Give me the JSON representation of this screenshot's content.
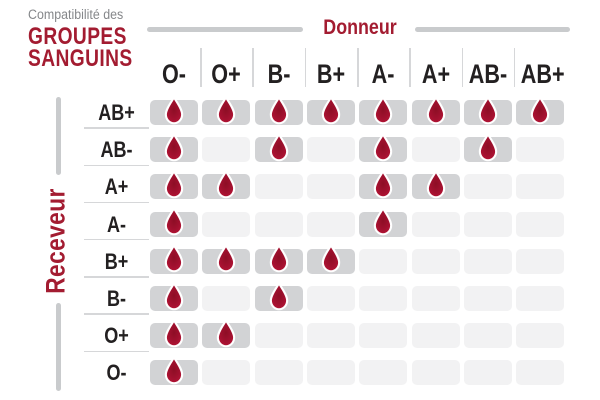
{
  "title": {
    "subtitle": "Compatibilité des",
    "main1": "GROUPES",
    "main2": "SANGUINS"
  },
  "chart_data": {
    "type": "heatmap",
    "title": "Compatibilité des GROUPES SANGUINS",
    "x_axis_label": "Donneur",
    "y_axis_label": "Receveur",
    "columns": [
      "O-",
      "O+",
      "B-",
      "B+",
      "A-",
      "A+",
      "AB-",
      "AB+"
    ],
    "rows": [
      "AB+",
      "AB-",
      "A+",
      "A-",
      "B+",
      "B-",
      "O+",
      "O-"
    ],
    "values": [
      [
        1,
        1,
        1,
        1,
        1,
        1,
        1,
        1
      ],
      [
        1,
        0,
        1,
        0,
        1,
        0,
        1,
        0
      ],
      [
        1,
        1,
        0,
        0,
        1,
        1,
        0,
        0
      ],
      [
        1,
        0,
        0,
        0,
        1,
        0,
        0,
        0
      ],
      [
        1,
        1,
        1,
        1,
        0,
        0,
        0,
        0
      ],
      [
        1,
        0,
        1,
        0,
        0,
        0,
        0,
        0
      ],
      [
        1,
        1,
        0,
        0,
        0,
        0,
        0,
        0
      ],
      [
        1,
        0,
        0,
        0,
        0,
        0,
        0,
        0
      ]
    ],
    "value_meaning": {
      "1": "compatible — blood drop shown on dark cell",
      "0": "not compatible — empty light cell"
    },
    "legend_position": "none",
    "grid": "rounded cells, dark gray = compatible, light gray = not compatible"
  },
  "icons": {
    "compatible_marker": "blood-drop-icon"
  },
  "colors": {
    "accent_crimson": "#a31c31",
    "drop_gradient": [
      "#8d0e25",
      "#a41130",
      "#bb1536"
    ],
    "drop_outline": "#ffffff",
    "cell_filled": "#d2d3d5",
    "cell_empty": "#f2f2f3",
    "line_gray": "#c9cbcd",
    "sep_gray": "#d6d7d9",
    "label_dark": "#232021",
    "subtitle_gray": "#85878a"
  }
}
